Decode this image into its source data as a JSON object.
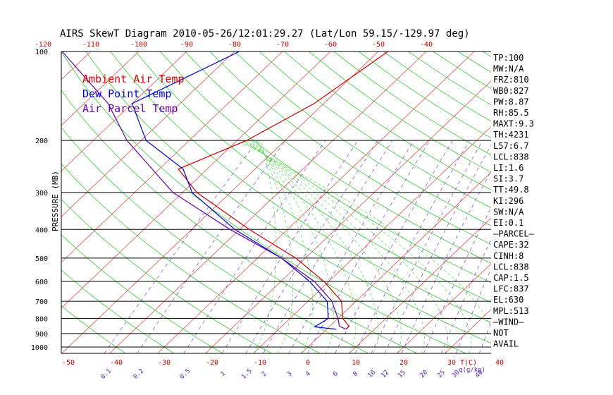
{
  "chart_data": {
    "type": "line",
    "title": "AIRS SkewT Diagram 2010-05-26/12:01:29.27 (Lat/Lon 59.15/-129.97 deg)",
    "ylabel": "PRESSURE (MB)",
    "xlabel_bottom_unit": "T(C)",
    "mixing_ratio_unit": "q(g/kg)",
    "pressure_ticks": [
      "100",
      "200",
      "300",
      "400",
      "500",
      "600",
      "700",
      "800",
      "900",
      "1000"
    ],
    "pressure_values": [
      100,
      200,
      300,
      400,
      500,
      600,
      700,
      800,
      900,
      1000
    ],
    "bottom_temp_ticks": [
      "-50",
      "-40",
      "-30",
      "-20",
      "-10",
      "0",
      "10",
      "20",
      "30",
      "40"
    ],
    "bottom_temp_values": [
      -50,
      -40,
      -30,
      -20,
      -10,
      0,
      10,
      20,
      30,
      40
    ],
    "top_temp_ticks": [
      "-120",
      "-110",
      "-100",
      "-90",
      "-80",
      "-70",
      "-60",
      "-50",
      "-40"
    ],
    "top_temp_values": [
      -120,
      -110,
      -100,
      -90,
      -80,
      -70,
      -60,
      -50,
      -40
    ],
    "mixing_ratio_ticks": [
      "0.1",
      "0.2",
      "0.5",
      "1",
      "1.5",
      "2",
      "3",
      "4",
      "6",
      "8",
      "10",
      "12",
      "15",
      "20",
      "25",
      "30",
      "40"
    ],
    "mixing_ratio_values": [
      0.1,
      0.2,
      0.5,
      1,
      1.5,
      2,
      3,
      4,
      6,
      8,
      10,
      12,
      15,
      20,
      25,
      30,
      40
    ],
    "legend": [
      {
        "name": "Ambient Air Temp",
        "color": "#dd0000"
      },
      {
        "name": "Dew Point Temp",
        "color": "#0000dd"
      },
      {
        "name": "Air Parcel Temp",
        "color": "#6600aa"
      }
    ],
    "series": [
      {
        "name": "Ambient Air Temp",
        "color": "#cc0000",
        "points": [
          [
            100,
            -48
          ],
          [
            150,
            -52
          ],
          [
            200,
            -58
          ],
          [
            250,
            -66
          ],
          [
            300,
            -57
          ],
          [
            400,
            -38
          ],
          [
            500,
            -22
          ],
          [
            600,
            -11
          ],
          [
            700,
            -3
          ],
          [
            800,
            1
          ],
          [
            850,
            4
          ],
          [
            870,
            4
          ]
        ]
      },
      {
        "name": "Dew Point Temp",
        "color": "#0000cc",
        "points": [
          [
            100,
            -79
          ],
          [
            150,
            -90
          ],
          [
            200,
            -79
          ],
          [
            250,
            -65
          ],
          [
            300,
            -58
          ],
          [
            400,
            -41
          ],
          [
            500,
            -25
          ],
          [
            600,
            -14
          ],
          [
            700,
            -6
          ],
          [
            800,
            -2
          ],
          [
            855,
            -3
          ],
          [
            870,
            2
          ]
        ]
      },
      {
        "name": "Air Parcel Temp",
        "color": "#6600aa",
        "points": [
          [
            100,
            -116
          ],
          [
            150,
            -95
          ],
          [
            200,
            -83
          ],
          [
            300,
            -62
          ],
          [
            400,
            -42
          ],
          [
            500,
            -25
          ],
          [
            600,
            -13
          ],
          [
            700,
            -5
          ],
          [
            800,
            0
          ],
          [
            850,
            2
          ],
          [
            870,
            4
          ]
        ]
      }
    ],
    "grid": true,
    "legend_position": "top-left"
  },
  "indices": [
    "TP:100",
    "MW:N/A",
    "FRZ:810",
    "WB0:827",
    "PW:8.87",
    "RH:85.5",
    "MAXT:9.3",
    "TH:4231",
    "L57:6.7",
    "LCL:838",
    "LI:1.6",
    "SI:3.7",
    "TT:49.8",
    "KI:296",
    "SW:N/A",
    "EI:0.1",
    "—PARCEL—",
    "CAPE:32",
    "CINH:8",
    "LCL:838",
    "CAP:1.5",
    "LFC:837",
    "EL:630",
    "MPL:513",
    "—WIND—",
    "NOT",
    "AVAIL"
  ]
}
